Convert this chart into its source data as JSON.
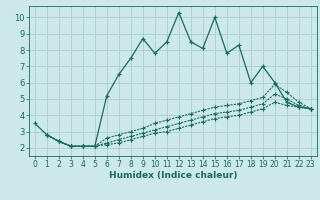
{
  "xlabel": "Humidex (Indice chaleur)",
  "background_color": "#cce8e8",
  "grid_color": "#aacccc",
  "line_color": "#1a6b5a",
  "xlim": [
    -0.5,
    23.5
  ],
  "ylim": [
    1.5,
    10.7
  ],
  "yticks": [
    2,
    3,
    4,
    5,
    6,
    7,
    8,
    9,
    10
  ],
  "xticks": [
    0,
    1,
    2,
    3,
    4,
    5,
    6,
    7,
    8,
    9,
    10,
    11,
    12,
    13,
    14,
    15,
    16,
    17,
    18,
    19,
    20,
    21,
    22,
    23
  ],
  "series1_x": [
    0,
    1,
    2,
    3,
    4,
    5,
    6,
    7,
    8,
    9,
    10,
    11,
    12,
    13,
    14,
    15,
    16,
    17,
    18,
    19,
    20,
    21,
    22,
    23
  ],
  "series1_y": [
    3.5,
    2.8,
    2.4,
    2.1,
    2.1,
    2.1,
    5.2,
    6.5,
    7.5,
    8.7,
    7.8,
    8.5,
    10.3,
    8.5,
    8.1,
    10.0,
    7.8,
    8.3,
    6.0,
    7.0,
    6.0,
    4.8,
    4.5,
    4.4
  ],
  "series2_x": [
    1,
    2,
    3,
    4,
    5,
    6,
    7,
    8,
    9,
    10,
    11,
    12,
    13,
    14,
    15,
    16,
    17,
    18,
    19,
    20,
    21,
    22,
    23
  ],
  "series2_y": [
    2.8,
    2.4,
    2.1,
    2.1,
    2.1,
    2.6,
    2.8,
    3.0,
    3.2,
    3.5,
    3.7,
    3.9,
    4.1,
    4.3,
    4.5,
    4.6,
    4.7,
    4.9,
    5.1,
    5.9,
    5.4,
    4.8,
    4.4
  ],
  "series3_x": [
    1,
    2,
    3,
    4,
    5,
    6,
    7,
    8,
    9,
    10,
    11,
    12,
    13,
    14,
    15,
    16,
    17,
    18,
    19,
    20,
    21,
    22,
    23
  ],
  "series3_y": [
    2.8,
    2.4,
    2.1,
    2.1,
    2.1,
    2.3,
    2.5,
    2.7,
    2.9,
    3.1,
    3.3,
    3.5,
    3.7,
    3.9,
    4.1,
    4.2,
    4.3,
    4.5,
    4.7,
    5.3,
    5.0,
    4.6,
    4.4
  ],
  "series4_x": [
    1,
    2,
    3,
    4,
    5,
    6,
    7,
    8,
    9,
    10,
    11,
    12,
    13,
    14,
    15,
    16,
    17,
    18,
    19,
    20,
    21,
    22,
    23
  ],
  "series4_y": [
    2.8,
    2.4,
    2.1,
    2.1,
    2.1,
    2.2,
    2.3,
    2.5,
    2.7,
    2.9,
    3.0,
    3.2,
    3.4,
    3.6,
    3.8,
    3.9,
    4.0,
    4.2,
    4.4,
    4.8,
    4.6,
    4.5,
    4.4
  ],
  "label_fontsize": 5.5,
  "xlabel_fontsize": 6.5
}
